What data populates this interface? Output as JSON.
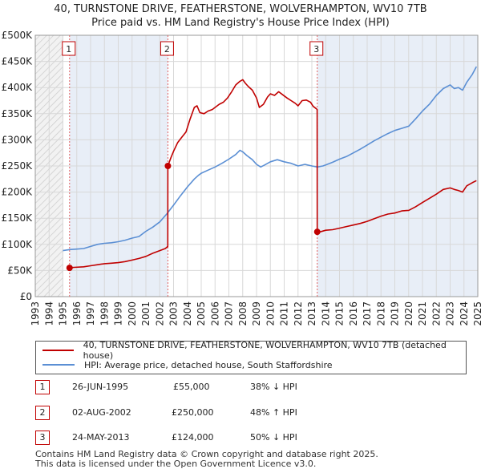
{
  "title_line1": "40, TURNSTONE DRIVE, FEATHERSTONE, WOLVERHAMPTON, WV10 7TB",
  "title_line2": "Price paid vs. HM Land Registry's House Price Index (HPI)",
  "colors": {
    "property": "#c00000",
    "hpi": "#5b8fd4",
    "shade": "#e8eef7",
    "grid": "#d8d8d8"
  },
  "chart_data": {
    "type": "line",
    "title": "Price paid vs. HM Land Registry's House Price Index (HPI)",
    "xlabel": "",
    "ylabel": "",
    "xlim": [
      1993,
      2025
    ],
    "ylim": [
      0,
      500000
    ],
    "y_ticks": [
      {
        "value": 0,
        "label": "£0"
      },
      {
        "value": 50000,
        "label": "£50K"
      },
      {
        "value": 100000,
        "label": "£100K"
      },
      {
        "value": 150000,
        "label": "£150K"
      },
      {
        "value": 200000,
        "label": "£200K"
      },
      {
        "value": 250000,
        "label": "£250K"
      },
      {
        "value": 300000,
        "label": "£300K"
      },
      {
        "value": 350000,
        "label": "£350K"
      },
      {
        "value": 400000,
        "label": "£400K"
      },
      {
        "value": 450000,
        "label": "£450K"
      },
      {
        "value": 500000,
        "label": "£500K"
      }
    ],
    "x_ticks": [
      "1993",
      "1994",
      "1995",
      "1996",
      "1997",
      "1998",
      "1999",
      "2000",
      "2001",
      "2002",
      "2003",
      "2004",
      "2005",
      "2006",
      "2007",
      "2008",
      "2009",
      "2010",
      "2011",
      "2012",
      "2013",
      "2014",
      "2015",
      "2016",
      "2017",
      "2018",
      "2019",
      "2020",
      "2021",
      "2022",
      "2023",
      "2024",
      "2025"
    ],
    "series": [
      {
        "name": "40, TURNSTONE DRIVE, FEATHERSTONE, WOLVERHAMPTON, WV10 7TB (detached house)",
        "color": "#c00000",
        "points": [
          [
            1995.48,
            55000
          ],
          [
            1995.8,
            56000
          ],
          [
            1996.5,
            57000
          ],
          [
            1997.0,
            59000
          ],
          [
            1997.5,
            61000
          ],
          [
            1998.0,
            63000
          ],
          [
            1998.5,
            64000
          ],
          [
            1999.0,
            65000
          ],
          [
            1999.5,
            67000
          ],
          [
            2000.0,
            70000
          ],
          [
            2000.5,
            73000
          ],
          [
            2001.0,
            77000
          ],
          [
            2001.5,
            83000
          ],
          [
            2002.0,
            88000
          ],
          [
            2002.4,
            92000
          ],
          [
            2002.58,
            96000
          ],
          [
            2002.59,
            250000
          ],
          [
            2002.8,
            265000
          ],
          [
            2003.0,
            278000
          ],
          [
            2003.3,
            295000
          ],
          [
            2003.6,
            305000
          ],
          [
            2003.9,
            315000
          ],
          [
            2004.2,
            340000
          ],
          [
            2004.5,
            362000
          ],
          [
            2004.7,
            365000
          ],
          [
            2004.9,
            352000
          ],
          [
            2005.2,
            350000
          ],
          [
            2005.5,
            355000
          ],
          [
            2005.8,
            358000
          ],
          [
            2006.0,
            362000
          ],
          [
            2006.3,
            368000
          ],
          [
            2006.6,
            372000
          ],
          [
            2006.9,
            380000
          ],
          [
            2007.2,
            392000
          ],
          [
            2007.5,
            405000
          ],
          [
            2007.8,
            412000
          ],
          [
            2008.0,
            415000
          ],
          [
            2008.2,
            408000
          ],
          [
            2008.4,
            402000
          ],
          [
            2008.7,
            395000
          ],
          [
            2009.0,
            380000
          ],
          [
            2009.2,
            362000
          ],
          [
            2009.5,
            368000
          ],
          [
            2009.8,
            382000
          ],
          [
            2010.0,
            388000
          ],
          [
            2010.3,
            385000
          ],
          [
            2010.6,
            392000
          ],
          [
            2010.9,
            386000
          ],
          [
            2011.2,
            380000
          ],
          [
            2011.5,
            375000
          ],
          [
            2011.8,
            370000
          ],
          [
            2012.0,
            365000
          ],
          [
            2012.3,
            375000
          ],
          [
            2012.6,
            376000
          ],
          [
            2012.9,
            372000
          ],
          [
            2013.1,
            364000
          ],
          [
            2013.3,
            360000
          ],
          [
            2013.38,
            358000
          ],
          [
            2013.39,
            124000
          ],
          [
            2013.6,
            124000
          ],
          [
            2014.0,
            127000
          ],
          [
            2014.5,
            128000
          ],
          [
            2015.0,
            131000
          ],
          [
            2015.5,
            134000
          ],
          [
            2016.0,
            137000
          ],
          [
            2016.5,
            140000
          ],
          [
            2017.0,
            144000
          ],
          [
            2017.5,
            149000
          ],
          [
            2018.0,
            154000
          ],
          [
            2018.5,
            158000
          ],
          [
            2019.0,
            160000
          ],
          [
            2019.5,
            164000
          ],
          [
            2020.0,
            165000
          ],
          [
            2020.5,
            172000
          ],
          [
            2021.0,
            180000
          ],
          [
            2021.5,
            188000
          ],
          [
            2022.0,
            196000
          ],
          [
            2022.5,
            205000
          ],
          [
            2023.0,
            208000
          ],
          [
            2023.3,
            205000
          ],
          [
            2023.6,
            203000
          ],
          [
            2023.9,
            200000
          ],
          [
            2024.2,
            212000
          ],
          [
            2024.6,
            218000
          ],
          [
            2024.9,
            222000
          ]
        ]
      },
      {
        "name": "HPI: Average price, detached house, South Staffordshire",
        "color": "#5b8fd4",
        "points": [
          [
            1995.0,
            88000
          ],
          [
            1995.5,
            90000
          ],
          [
            1996.0,
            91000
          ],
          [
            1996.5,
            92000
          ],
          [
            1997.0,
            96000
          ],
          [
            1997.5,
            100000
          ],
          [
            1998.0,
            102000
          ],
          [
            1998.5,
            103000
          ],
          [
            1999.0,
            105000
          ],
          [
            1999.5,
            108000
          ],
          [
            2000.0,
            112000
          ],
          [
            2000.5,
            115000
          ],
          [
            2001.0,
            125000
          ],
          [
            2001.5,
            133000
          ],
          [
            2002.0,
            143000
          ],
          [
            2002.5,
            158000
          ],
          [
            2003.0,
            175000
          ],
          [
            2003.5,
            193000
          ],
          [
            2004.0,
            210000
          ],
          [
            2004.5,
            225000
          ],
          [
            2004.8,
            232000
          ],
          [
            2005.0,
            236000
          ],
          [
            2005.5,
            242000
          ],
          [
            2006.0,
            248000
          ],
          [
            2006.5,
            255000
          ],
          [
            2007.0,
            263000
          ],
          [
            2007.5,
            272000
          ],
          [
            2007.8,
            280000
          ],
          [
            2008.0,
            277000
          ],
          [
            2008.3,
            270000
          ],
          [
            2008.7,
            262000
          ],
          [
            2009.0,
            253000
          ],
          [
            2009.3,
            248000
          ],
          [
            2009.6,
            252000
          ],
          [
            2010.0,
            258000
          ],
          [
            2010.5,
            262000
          ],
          [
            2011.0,
            258000
          ],
          [
            2011.5,
            255000
          ],
          [
            2012.0,
            250000
          ],
          [
            2012.5,
            253000
          ],
          [
            2013.0,
            250000
          ],
          [
            2013.4,
            248000
          ],
          [
            2013.8,
            250000
          ],
          [
            2014.0,
            252000
          ],
          [
            2014.5,
            257000
          ],
          [
            2015.0,
            263000
          ],
          [
            2015.5,
            268000
          ],
          [
            2016.0,
            275000
          ],
          [
            2016.5,
            282000
          ],
          [
            2017.0,
            290000
          ],
          [
            2017.5,
            298000
          ],
          [
            2018.0,
            305000
          ],
          [
            2018.5,
            312000
          ],
          [
            2019.0,
            318000
          ],
          [
            2019.5,
            322000
          ],
          [
            2020.0,
            326000
          ],
          [
            2020.5,
            340000
          ],
          [
            2021.0,
            355000
          ],
          [
            2021.5,
            368000
          ],
          [
            2022.0,
            385000
          ],
          [
            2022.5,
            398000
          ],
          [
            2023.0,
            405000
          ],
          [
            2023.3,
            398000
          ],
          [
            2023.6,
            400000
          ],
          [
            2023.9,
            395000
          ],
          [
            2024.2,
            410000
          ],
          [
            2024.6,
            425000
          ],
          [
            2024.9,
            440000
          ]
        ]
      }
    ],
    "annotations": [
      {
        "label": "1",
        "x": 1995.48,
        "price": 55000
      },
      {
        "label": "2",
        "x": 2002.59,
        "price": 250000
      },
      {
        "label": "3",
        "x": 2013.39,
        "price": 124000
      }
    ],
    "shaded_before": 1995.0,
    "shaded_after": 2025.0
  },
  "legend": {
    "property_label": "40, TURNSTONE DRIVE, FEATHERSTONE, WOLVERHAMPTON, WV10 7TB (detached house)",
    "hpi_label": "HPI: Average price, detached house, South Staffordshire"
  },
  "transactions": [
    {
      "num": "1",
      "date": "26-JUN-1995",
      "price": "£55,000",
      "hpi": "38% ↓ HPI"
    },
    {
      "num": "2",
      "date": "02-AUG-2002",
      "price": "£250,000",
      "hpi": "48% ↑ HPI"
    },
    {
      "num": "3",
      "date": "24-MAY-2013",
      "price": "£124,000",
      "hpi": "50% ↓ HPI"
    }
  ],
  "footer_line1": "Contains HM Land Registry data © Crown copyright and database right 2025.",
  "footer_line2": "This data is licensed under the Open Government Licence v3.0."
}
